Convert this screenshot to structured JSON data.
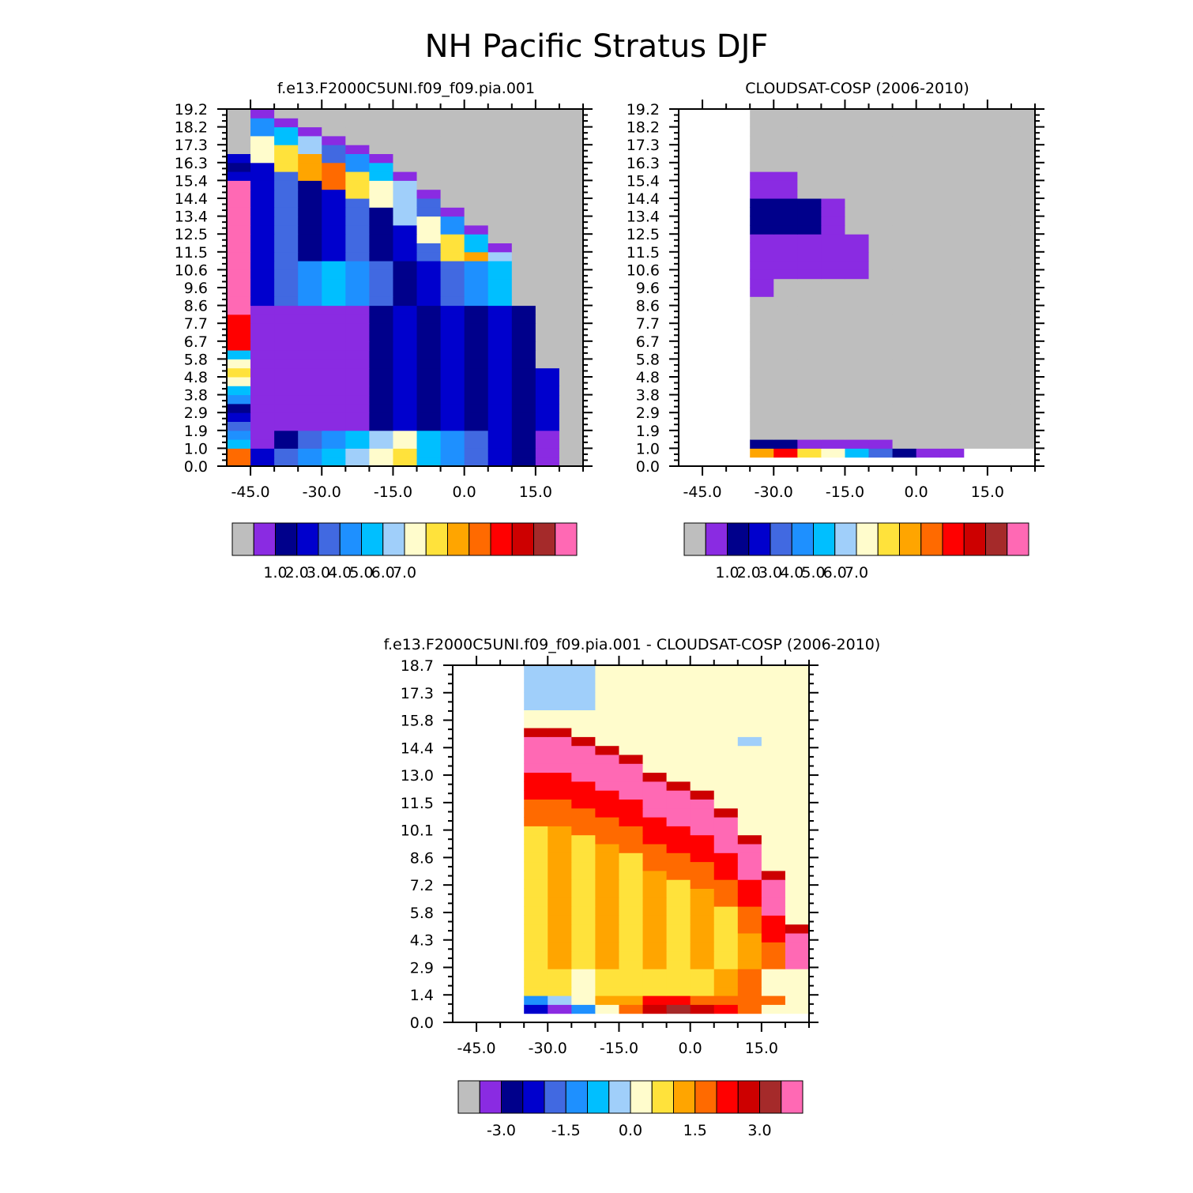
{
  "title": "NH Pacific Stratus DJF",
  "colors": {
    "missing": "#bebebe",
    "palette": [
      "#bebebe",
      "#8a2be2",
      "#00008b",
      "#0000cd",
      "#4169e1",
      "#1e90ff",
      "#00bfff",
      "#a0cffa",
      "#fffccc",
      "#ffe23b",
      "#ffa500",
      "#ff6a00",
      "#ff0000",
      "#cd0000",
      "#a52a2a",
      "#ff69b4"
    ]
  },
  "chart_data": [
    {
      "type": "heatmap",
      "title": "f.e13.F2000C5UNI.f09_f09.pia.001",
      "x_ticks": [
        "-45.0",
        "-30.0",
        "-15.0",
        "0.0",
        "15.0"
      ],
      "y_ticks": [
        "0.0",
        "1.0",
        "1.9",
        "2.9",
        "3.8",
        "4.8",
        "5.8",
        "6.7",
        "7.7",
        "8.6",
        "9.6",
        "10.6",
        "11.5",
        "12.5",
        "13.4",
        "14.4",
        "15.4",
        "16.3",
        "17.3",
        "18.2",
        "19.2"
      ],
      "colorbar_labels": [
        "1.0",
        "2.0",
        "3.0",
        "4.0",
        "5.0",
        "6.0",
        "7.0"
      ],
      "x_edges": [
        -50,
        -45,
        -40,
        -35,
        -30,
        -25,
        -20,
        -15,
        -10,
        -5,
        0,
        5,
        10,
        15,
        20,
        25
      ],
      "rows_bottom_to_top": [
        "BBBBBBCAA00000",
        "CBBBBCGFBBBA00",
        "6BBCCC8989DA00",
        "BBBBBBBBB9B000",
        "7A777777777AA0",
        "6CC77777777CA0",
        "6B777777777CC0",
        "8C877777777BB0",
        "5C777777777BB0",
        "6A777777777BC0",
        "5A777777777CC0",
        "8A7777777777C0",
        "6A7BBAAAAAAAB0",
        "6AAAABBBBBABC0",
        "7A7BBBB8BBBBC0",
        "7C77CCCCCC8CC0",
        "6C777CBBBABCC0",
        "87777ABBBBAC80",
        "C777BBCCC99C80",
        "C777AACCC99C90",
        "F777ABBCCC98C0",
        "FBCBBDECD9D900",
        "FBBB9DFFBAD700",
        "FCCCD7FFB80000",
        "FBCDFDFB88C000",
        "FBCBEDFCC90000",
        "FBCDFFFCAB0000",
        "FBDDFDFBB00000",
        "FBCFFCA7B80000",
        "FBCFEFB7CA7000",
        "ECDDFF8DCB7000",
        "BC8FFFFAAA0000",
        "BBC8BFFF8A0000",
        "CBCEF9DA800000",
        "DCDCE87B000000",
        "8BBEDDC7000000",
        "9BCDBBB0000000",
        "CCCBB000000000",
        "C77B0000000000",
        "CC70000000000000",
        "CC00000000000000",
        "B0000000000000",
        "7000000000000000",
        "0000000000000000",
        "0000000000000000",
        "0000000000000000",
        "0000000000000000",
        "0000000000000000"
      ]
    },
    {
      "type": "heatmap",
      "title": "CLOUDSAT-COSP (2006-2010)",
      "x_ticks": [
        "-45.0",
        "-30.0",
        "-15.0",
        "0.0",
        "15.0"
      ],
      "y_ticks": [
        "0.0",
        "1.0",
        "1.9",
        "2.9",
        "3.8",
        "4.8",
        "5.8",
        "6.7",
        "7.7",
        "8.6",
        "9.6",
        "10.6",
        "11.5",
        "12.5",
        "13.4",
        "14.4",
        "15.4",
        "16.3",
        "17.3",
        "18.2",
        "19.2"
      ],
      "colorbar_labels": [
        "1.0",
        "2.0",
        "3.0",
        "4.0",
        "5.0",
        "6.0",
        "7.0"
      ],
      "x_edges": [
        -35,
        -30,
        -25,
        -20,
        -15,
        -10,
        -5,
        0,
        5,
        10,
        15,
        20,
        25
      ],
      "rows_bottom_to_top": [
        "A8E86B5C4C1A",
        "69845441",
        "CCB7770",
        "1",
        "1",
        "1",
        "1",
        "1",
        "1",
        "1",
        "1",
        "1",
        "1",
        "1",
        "1",
        "1",
        "1",
        "1",
        "777710",
        "77777",
        "77777",
        "77777",
        "77777",
        "2222110",
        "22221",
        "22221",
        "22211",
        "2221",
        "111",
        "11",
        "1",
        "1",
        "1",
        "1",
        "1",
        "1",
        "1",
        "1",
        "1",
        "1",
        "1",
        "1",
        "1",
        "1",
        "1",
        "1"
      ]
    },
    {
      "type": "heatmap",
      "title": "f.e13.F2000C5UNI.f09_f09.pia.001 - CLOUDSAT-COSP (2006-2010)",
      "x_ticks": [
        "-45.0",
        "-30.0",
        "-15.0",
        "0.0",
        "15.0"
      ],
      "y_ticks": [
        "0.0",
        "1.4",
        "2.9",
        "4.3",
        "5.8",
        "7.2",
        "8.6",
        "10.1",
        "11.5",
        "13.0",
        "14.4",
        "15.8",
        "17.3",
        "18.7"
      ],
      "colorbar_labels": [
        "-3.0",
        "-1.5",
        "0.0",
        "1.5",
        "3.0"
      ]
    }
  ]
}
